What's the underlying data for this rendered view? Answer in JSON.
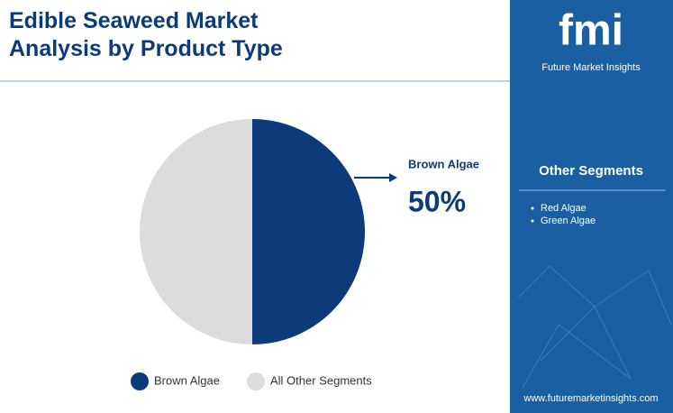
{
  "chart_data": {
    "type": "pie",
    "title": "Edible Seaweed Market Analysis by Product Type",
    "categories": [
      "Brown Algae",
      "All Other Segments"
    ],
    "values": [
      50,
      50
    ],
    "value_labels": [
      "50%",
      null
    ],
    "colors": [
      "#0d3b7a",
      "#dcdcdc"
    ]
  },
  "sidebar": {
    "logo": "fmi",
    "brand": "Future Market Insights",
    "heading": "Other Segments",
    "items": [
      "Red Algae",
      "Green Algae"
    ],
    "website": "www.futuremarketinsights.com"
  }
}
